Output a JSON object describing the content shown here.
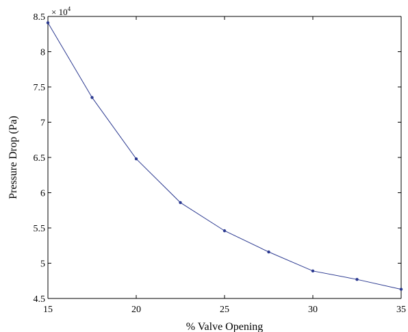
{
  "chart_data": {
    "type": "line",
    "title": "",
    "xlabel": "% Valve Opening",
    "ylabel": "Pressure Drop (Pa)",
    "y_multiplier": {
      "base": "× 10",
      "exponent": "4"
    },
    "xlim": [
      15,
      35
    ],
    "ylim": [
      45000,
      85000
    ],
    "x_ticks": [
      15,
      20,
      25,
      30,
      35
    ],
    "x_tick_labels": [
      "15",
      "20",
      "25",
      "30",
      "35"
    ],
    "y_ticks": [
      45000,
      50000,
      55000,
      60000,
      65000,
      70000,
      75000,
      80000,
      85000
    ],
    "y_tick_labels": [
      "4.5",
      "5",
      "5.5",
      "6",
      "6.5",
      "7",
      "7.5",
      "8",
      "8.5"
    ],
    "grid": false,
    "legend": false,
    "series": [
      {
        "color": "#2b3990",
        "marker": "dot",
        "x": [
          15,
          17.5,
          20,
          22.5,
          25,
          27.5,
          30,
          32.5,
          35
        ],
        "y": [
          84100,
          73500,
          64800,
          58600,
          54600,
          51600,
          48900,
          47700,
          46300
        ]
      }
    ]
  }
}
